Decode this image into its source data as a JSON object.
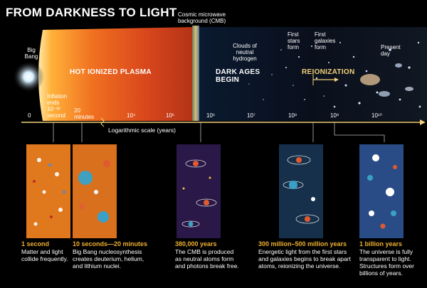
{
  "title": "FROM DARKNESS TO LIGHT",
  "labels": {
    "big_bang": "Big\nBang",
    "inflation": "Inflation\nends\n10⁻³²\nsecond",
    "twenty_min": "20\nminutes",
    "cmb": "Cosmic microwave\nbackground (CMB)",
    "clouds": "Clouds of\nneutral\nhydrogen",
    "first_stars": "First\nstars\nform",
    "first_galaxies": "First\ngalaxies\nform",
    "present_day": "Present\nday"
  },
  "eras": {
    "plasma": "HOT IONIZED PLASMA",
    "dark_ages": "DARK AGES\nBEGIN",
    "reionization": "REIONIZATION"
  },
  "axis": {
    "label": "Logarithmic scale (years)",
    "ticks": [
      "0",
      "10⁴",
      "10⁵",
      "10⁶",
      "10⁷",
      "10⁸",
      "10⁹",
      "10¹⁰"
    ]
  },
  "panels": [
    {
      "title": "1 second",
      "desc": "Matter and light\ncollide frequently."
    },
    {
      "title": "10 seconds—20 minutes",
      "desc": "Big Bang nucleosynthesis\ncreates deuterium, helium,\nand lithium nuclei."
    },
    {
      "title": "380,000 years",
      "desc": "The CMB is produced\nas neutral atoms form\nand photons break free."
    },
    {
      "title": "300 million–500 million years",
      "desc": "Energetic light from the first stars\nand galaxies begins to break apart\natoms, reionizing the universe."
    },
    {
      "title": "1 billion years",
      "desc": "The universe is fully\ntransparent to light.\nStructures form over\nbillions of years."
    }
  ],
  "colors": {
    "accent": "#f0b030",
    "axis": "#f2d27a"
  }
}
